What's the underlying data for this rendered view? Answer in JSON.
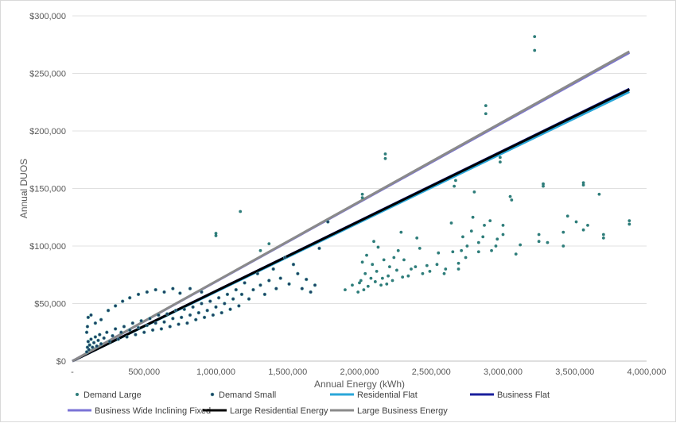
{
  "chart_data": {
    "type": "scatter",
    "xlabel": "Annual Energy (kWh)",
    "ylabel": "Annual DUOS",
    "xlim": [
      0,
      4000000
    ],
    "ylim": [
      0,
      300000
    ],
    "x_ticks": [
      0,
      500000,
      1000000,
      1500000,
      2000000,
      2500000,
      3000000,
      3500000,
      4000000
    ],
    "x_tick_labels": [
      "-",
      "500,000",
      "1,000,000",
      "1,500,000",
      "2,000,000",
      "2,500,000",
      "3,000,000",
      "3,500,000",
      "4,000,000"
    ],
    "y_ticks": [
      0,
      50000,
      100000,
      150000,
      200000,
      250000,
      300000
    ],
    "y_tick_labels": [
      "$0",
      "$50,000",
      "$100,000",
      "$150,000",
      "$200,000",
      "$250,000",
      "$300,000"
    ],
    "grid": "horizontal",
    "legend_position": "bottom",
    "series": [
      {
        "name": "Demand Large",
        "kind": "scatter",
        "color": "#2e7d7a",
        "points": [
          [
            3220000,
            282000
          ],
          [
            3220000,
            270000
          ],
          [
            2880000,
            222000
          ],
          [
            2880000,
            215000
          ],
          [
            2980000,
            177000
          ],
          [
            2980000,
            173000
          ],
          [
            2180000,
            180000
          ],
          [
            2180000,
            176000
          ],
          [
            2020000,
            145000
          ],
          [
            2020000,
            142000
          ],
          [
            1170000,
            130000
          ],
          [
            1000000,
            111000
          ],
          [
            1000000,
            109000
          ],
          [
            1310000,
            96000
          ],
          [
            1370000,
            102000
          ],
          [
            3560000,
            155000
          ],
          [
            3560000,
            153000
          ],
          [
            3670000,
            145000
          ],
          [
            3280000,
            154000
          ],
          [
            3280000,
            152000
          ],
          [
            3880000,
            122000
          ],
          [
            3880000,
            119000
          ],
          [
            3450000,
            126000
          ],
          [
            3510000,
            121000
          ],
          [
            3700000,
            110000
          ],
          [
            3700000,
            107000
          ],
          [
            3560000,
            114000
          ],
          [
            3590000,
            118000
          ],
          [
            3420000,
            112000
          ],
          [
            3420000,
            100000
          ],
          [
            3250000,
            110000
          ],
          [
            3250000,
            104000
          ],
          [
            3310000,
            103000
          ],
          [
            3120000,
            101000
          ],
          [
            3090000,
            93000
          ],
          [
            3050000,
            143000
          ],
          [
            3060000,
            140000
          ],
          [
            3000000,
            118000
          ],
          [
            3000000,
            110000
          ],
          [
            2960000,
            106000
          ],
          [
            2950000,
            100000
          ],
          [
            2910000,
            122000
          ],
          [
            2920000,
            96000
          ],
          [
            2870000,
            118000
          ],
          [
            2860000,
            108000
          ],
          [
            2830000,
            103000
          ],
          [
            2830000,
            95000
          ],
          [
            2800000,
            147000
          ],
          [
            2790000,
            125000
          ],
          [
            2780000,
            113000
          ],
          [
            2750000,
            100000
          ],
          [
            2740000,
            90000
          ],
          [
            2720000,
            108000
          ],
          [
            2710000,
            96000
          ],
          [
            2690000,
            85000
          ],
          [
            2690000,
            80000
          ],
          [
            2670000,
            157000
          ],
          [
            2660000,
            152000
          ],
          [
            2650000,
            95000
          ],
          [
            2640000,
            120000
          ],
          [
            2600000,
            80000
          ],
          [
            2590000,
            76000
          ],
          [
            2550000,
            94000
          ],
          [
            2540000,
            84000
          ],
          [
            2490000,
            78000
          ],
          [
            2470000,
            83000
          ],
          [
            2440000,
            76000
          ],
          [
            2420000,
            98000
          ],
          [
            2400000,
            107000
          ],
          [
            2390000,
            82000
          ],
          [
            2360000,
            80000
          ],
          [
            2340000,
            74000
          ],
          [
            2310000,
            88000
          ],
          [
            2300000,
            73000
          ],
          [
            2290000,
            112000
          ],
          [
            2270000,
            96000
          ],
          [
            2260000,
            79000
          ],
          [
            2240000,
            90000
          ],
          [
            2230000,
            70000
          ],
          [
            2210000,
            82000
          ],
          [
            2200000,
            74000
          ],
          [
            2190000,
            67000
          ],
          [
            2170000,
            88000
          ],
          [
            2160000,
            72000
          ],
          [
            2150000,
            66000
          ],
          [
            2130000,
            99000
          ],
          [
            2120000,
            78000
          ],
          [
            2110000,
            69000
          ],
          [
            2100000,
            104000
          ],
          [
            2090000,
            84000
          ],
          [
            2080000,
            72000
          ],
          [
            2060000,
            65000
          ],
          [
            2050000,
            92000
          ],
          [
            2040000,
            76000
          ],
          [
            2030000,
            62000
          ],
          [
            2020000,
            86000
          ],
          [
            2010000,
            70000
          ],
          [
            2000000,
            68000
          ],
          [
            1990000,
            60000
          ],
          [
            1950000,
            66000
          ],
          [
            1900000,
            62000
          ]
        ]
      },
      {
        "name": "Demand Small",
        "kind": "scatter",
        "color": "#1d3f66",
        "stroke": "#5aa9a0",
        "points": [
          [
            1780000,
            121000
          ],
          [
            1720000,
            98000
          ],
          [
            1690000,
            66000
          ],
          [
            1660000,
            60000
          ],
          [
            1630000,
            71000
          ],
          [
            1600000,
            63000
          ],
          [
            1570000,
            76000
          ],
          [
            1540000,
            84000
          ],
          [
            1510000,
            67000
          ],
          [
            1480000,
            90000
          ],
          [
            1450000,
            72000
          ],
          [
            1420000,
            63000
          ],
          [
            1400000,
            80000
          ],
          [
            1370000,
            70000
          ],
          [
            1340000,
            58000
          ],
          [
            1310000,
            66000
          ],
          [
            1290000,
            76000
          ],
          [
            1260000,
            62000
          ],
          [
            1230000,
            54000
          ],
          [
            1200000,
            68000
          ],
          [
            1180000,
            58000
          ],
          [
            1160000,
            48000
          ],
          [
            1140000,
            62000
          ],
          [
            1120000,
            54000
          ],
          [
            1100000,
            45000
          ],
          [
            1080000,
            58000
          ],
          [
            1060000,
            50000
          ],
          [
            1040000,
            42000
          ],
          [
            1020000,
            55000
          ],
          [
            1000000,
            47000
          ],
          [
            980000,
            40000
          ],
          [
            960000,
            52000
          ],
          [
            940000,
            44000
          ],
          [
            920000,
            38000
          ],
          [
            900000,
            50000
          ],
          [
            880000,
            42000
          ],
          [
            860000,
            36000
          ],
          [
            840000,
            47000
          ],
          [
            820000,
            40000
          ],
          [
            800000,
            33000
          ],
          [
            780000,
            45000
          ],
          [
            760000,
            38000
          ],
          [
            740000,
            32000
          ],
          [
            720000,
            44000
          ],
          [
            700000,
            37000
          ],
          [
            680000,
            30000
          ],
          [
            660000,
            41000
          ],
          [
            640000,
            34000
          ],
          [
            620000,
            28000
          ],
          [
            600000,
            40000
          ],
          [
            580000,
            33000
          ],
          [
            560000,
            27000
          ],
          [
            540000,
            37000
          ],
          [
            520000,
            31000
          ],
          [
            500000,
            25000
          ],
          [
            480000,
            35000
          ],
          [
            460000,
            29000
          ],
          [
            440000,
            23000
          ],
          [
            420000,
            33000
          ],
          [
            400000,
            27000
          ],
          [
            380000,
            21000
          ],
          [
            360000,
            30000
          ],
          [
            340000,
            25000
          ],
          [
            320000,
            19000
          ],
          [
            300000,
            28000
          ],
          [
            280000,
            22000
          ],
          [
            260000,
            17000
          ],
          [
            240000,
            25000
          ],
          [
            220000,
            20000
          ],
          [
            200000,
            15000
          ],
          [
            190000,
            23000
          ],
          [
            180000,
            18000
          ],
          [
            170000,
            13000
          ],
          [
            160000,
            21000
          ],
          [
            150000,
            16000
          ],
          [
            140000,
            12000
          ],
          [
            130000,
            19000
          ],
          [
            120000,
            14000
          ],
          [
            115000,
            10000
          ],
          [
            110000,
            17000
          ],
          [
            105000,
            12000
          ],
          [
            100000,
            8000
          ],
          [
            100000,
            25000
          ],
          [
            105000,
            30000
          ],
          [
            110000,
            38000
          ],
          [
            130000,
            40000
          ],
          [
            160000,
            33000
          ],
          [
            200000,
            36000
          ],
          [
            250000,
            44000
          ],
          [
            300000,
            48000
          ],
          [
            350000,
            52000
          ],
          [
            400000,
            55000
          ],
          [
            460000,
            58000
          ],
          [
            520000,
            60000
          ],
          [
            580000,
            62000
          ],
          [
            640000,
            60000
          ],
          [
            700000,
            63000
          ],
          [
            750000,
            59000
          ],
          [
            820000,
            63000
          ],
          [
            900000,
            60000
          ]
        ]
      },
      {
        "name": "Residential Flat",
        "kind": "line",
        "color": "#2aa6d8",
        "points": [
          [
            0,
            0
          ],
          [
            3880000,
            234000
          ]
        ]
      },
      {
        "name": "Business Flat",
        "kind": "line",
        "color": "#1a1f9c",
        "points": [
          [
            0,
            0
          ],
          [
            3880000,
            236500
          ]
        ]
      },
      {
        "name": "Business Wide Inclining Fixed",
        "kind": "line",
        "color": "#7a73d6",
        "points": [
          [
            0,
            0
          ],
          [
            3880000,
            268000
          ]
        ]
      },
      {
        "name": "Large Residential Energy",
        "kind": "line",
        "color": "#000000",
        "points": [
          [
            0,
            0
          ],
          [
            3880000,
            236000
          ]
        ]
      },
      {
        "name": "Large Business Energy",
        "kind": "line",
        "color": "#8a8a8a",
        "points": [
          [
            0,
            0
          ],
          [
            3880000,
            269000
          ]
        ]
      }
    ]
  }
}
